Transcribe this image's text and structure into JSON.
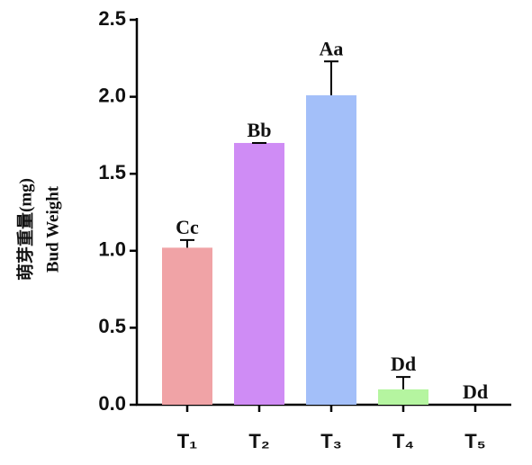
{
  "chart_data": {
    "type": "bar",
    "ylabel": [
      "萌芽重量(mg)",
      "Bud Weight"
    ],
    "categories": [
      "T₁",
      "T₂",
      "T₃",
      "T₄",
      "T₅"
    ],
    "values": [
      1.02,
      1.7,
      2.01,
      0.1,
      0
    ],
    "errors": [
      0.05,
      0,
      0.22,
      0.08,
      0
    ],
    "colors": [
      "#f0a3a6",
      "#cf8cf5",
      "#a3bff9",
      "#b5f5a0",
      "#ffffff"
    ],
    "annotations": [
      "Cc",
      "Bb",
      "Aa",
      "Dd",
      "Dd"
    ],
    "ylim": [
      0,
      2.5
    ],
    "yticks": [
      {
        "value": 0,
        "label": "0.0"
      },
      {
        "value": 0.5,
        "label": "0.5"
      },
      {
        "value": 1,
        "label": "1.0"
      },
      {
        "value": 1.5,
        "label": "1.5"
      },
      {
        "value": 2,
        "label": "2.0"
      },
      {
        "value": 2.5,
        "label": "2.5"
      }
    ],
    "grid": false
  }
}
